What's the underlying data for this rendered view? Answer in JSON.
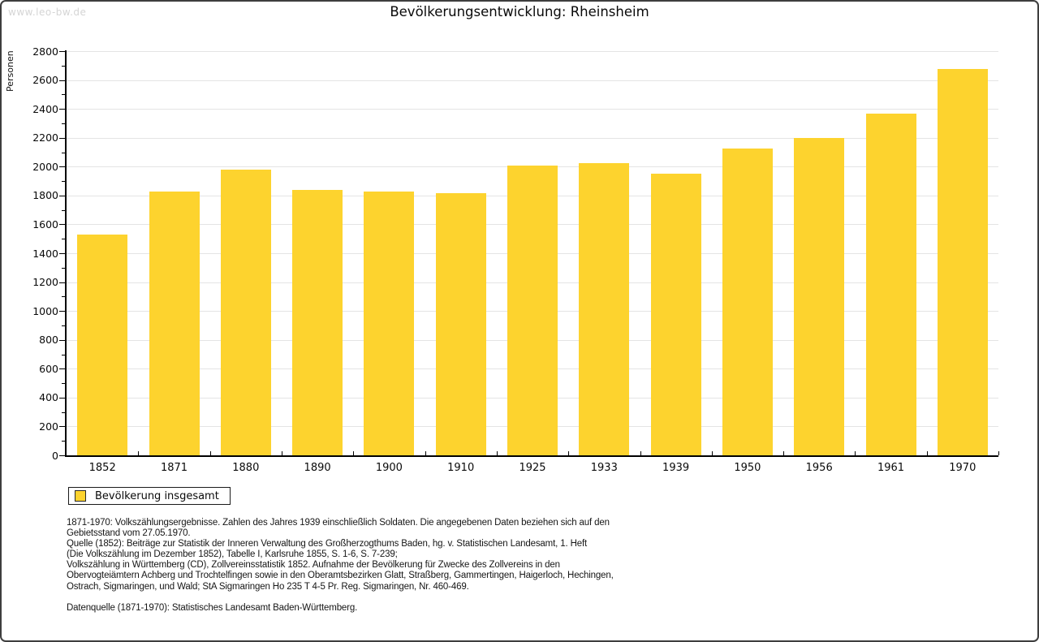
{
  "watermark": "www.leo-bw.de",
  "title": "Bevölkerungsentwicklung: Rheinsheim",
  "legend": {
    "label": "Bevölkerung insgesamt",
    "swatch_color": "#fdd32e"
  },
  "footnotes": {
    "lines": [
      "1871-1970: Volkszählungsergebnisse. Zahlen des Jahres 1939 einschließlich Soldaten. Die angegebenen Daten beziehen sich auf den",
      "Gebietsstand vom 27.05.1970.",
      "Quelle (1852): Beiträge zur Statistik der Inneren Verwaltung des Großherzogthums Baden, hg. v. Statistischen Landesamt, 1. Heft",
      "(Die Volkszählung im Dezember 1852), Tabelle I, Karlsruhe 1855, S. 1-6, S. 7-239;",
      "Volkszählung in Württemberg (CD), Zollvereinsstatistik 1852. Aufnahme der Bevölkerung für Zwecke des Zollvereins in den",
      "Obervogteiämtern Achberg und Trochtelfingen sowie in den Oberamtsbezirken Glatt, Straßberg, Gammertingen, Haigerloch, Hechingen,",
      "Ostrach, Sigmaringen, und Wald; StA Sigmaringen Ho 235 T 4-5 Pr. Reg. Sigmaringen, Nr. 460-469."
    ],
    "datasource": "Datenquelle (1871-1970): Statistisches Landesamt Baden-Württemberg."
  },
  "chart_data": {
    "type": "bar",
    "title": "Bevölkerungsentwicklung: Rheinsheim",
    "series_name": "Bevölkerung insgesamt",
    "categories": [
      "1852",
      "1871",
      "1880",
      "1890",
      "1900",
      "1910",
      "1925",
      "1933",
      "1939",
      "1950",
      "1956",
      "1961",
      "1970"
    ],
    "values": [
      1530,
      1830,
      1980,
      1840,
      1830,
      1815,
      2010,
      2025,
      1950,
      2125,
      2200,
      2365,
      2675
    ],
    "xlabel": "",
    "ylabel": "Personen",
    "ylim": [
      0,
      2800
    ],
    "ytick_step": 200,
    "minor_tick_step": 100,
    "ytick_labels": [
      "0",
      "200",
      "400",
      "600",
      "800",
      "1000",
      "1200",
      "1400",
      "1600",
      "1800",
      "2000",
      "2200",
      "2400",
      "2600",
      "2800"
    ],
    "bar_color": "#fdd32e",
    "gridline_color": "#e4e4e4",
    "grid": "horizontal-major-only",
    "legend_position": "bottom-left"
  }
}
